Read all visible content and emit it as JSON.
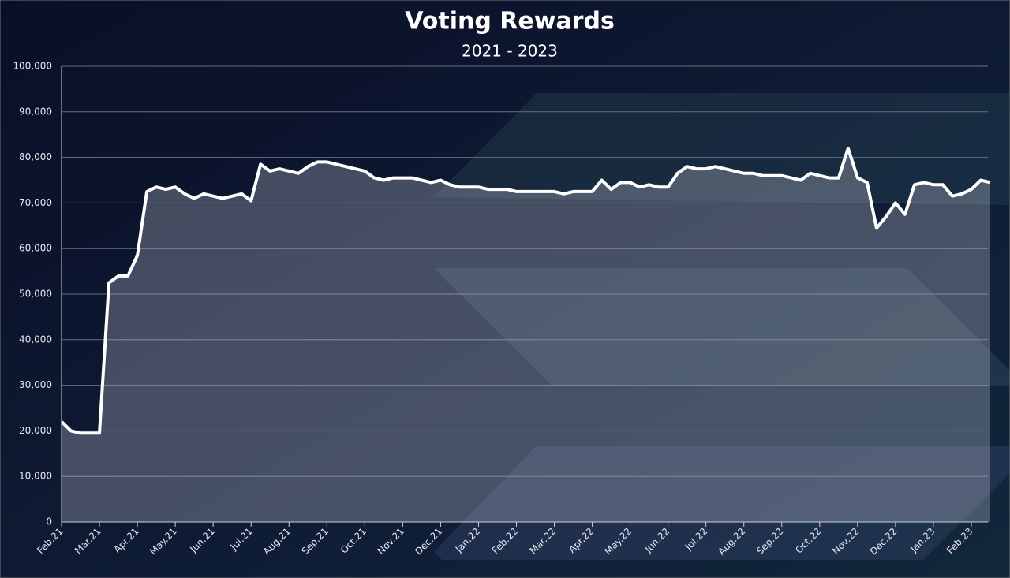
{
  "chart_data": {
    "type": "area",
    "title": "Voting Rewards",
    "subtitle": "2021 - 2023",
    "categories": [
      "Feb.21",
      null,
      null,
      null,
      "Mar.21",
      null,
      null,
      null,
      "Apr.21",
      null,
      null,
      null,
      "May.21",
      null,
      null,
      null,
      "Jun.21",
      null,
      null,
      null,
      "Jul.21",
      null,
      null,
      null,
      "Aug.21",
      null,
      null,
      null,
      "Sep.21",
      null,
      null,
      null,
      "Oct.21",
      null,
      null,
      null,
      "Nov.21",
      null,
      null,
      null,
      "Dec.21",
      null,
      null,
      null,
      "Jan.22",
      null,
      null,
      null,
      "Feb.22",
      null,
      null,
      null,
      "Mar.22",
      null,
      null,
      null,
      "Apr.22",
      null,
      null,
      null,
      "May.22",
      null,
      null,
      null,
      "Jun.22",
      null,
      null,
      null,
      "Jul.22",
      null,
      null,
      null,
      "Aug.22",
      null,
      null,
      null,
      "Sep.22",
      null,
      null,
      null,
      "Oct.22",
      null,
      null,
      null,
      "Nov.22",
      null,
      null,
      null,
      "Dec.22",
      null,
      null,
      null,
      "Jan.23",
      null,
      null,
      null,
      "Feb.23",
      null,
      null
    ],
    "values": [
      22000,
      20000,
      19500,
      19500,
      19500,
      52500,
      54000,
      54000,
      58500,
      72500,
      73500,
      73000,
      73500,
      72000,
      71000,
      72000,
      71500,
      71000,
      71500,
      72000,
      70500,
      78500,
      77000,
      77500,
      77000,
      76500,
      78000,
      79000,
      79000,
      78500,
      78000,
      77500,
      77000,
      75500,
      75000,
      75500,
      75500,
      75500,
      75000,
      74500,
      75000,
      74000,
      73500,
      73500,
      73500,
      73000,
      73000,
      73000,
      72500,
      72500,
      72500,
      72500,
      72500,
      72000,
      72500,
      72500,
      72500,
      75000,
      73000,
      74500,
      74500,
      73500,
      74000,
      73500,
      73500,
      76500,
      78000,
      77500,
      77500,
      78000,
      77500,
      77000,
      76500,
      76500,
      76000,
      76000,
      76000,
      75500,
      75000,
      76500,
      76000,
      75500,
      75500,
      82000,
      75500,
      74500,
      64500,
      67000,
      70000,
      67500,
      74000,
      74500,
      74000,
      74000,
      71500,
      72000,
      73000,
      75000,
      74500
    ],
    "color": "#ffffff",
    "ylim": [
      0,
      100000
    ],
    "yticks": [
      0,
      {
        "value": 10000,
        "label": "10,000"
      },
      {
        "value": 20000,
        "label": "20,000"
      },
      {
        "value": 30000,
        "label": "30,000"
      },
      {
        "value": 40000,
        "label": "40,000"
      },
      {
        "value": 50000,
        "label": "50,000"
      },
      {
        "value": 60000,
        "label": "60,000"
      },
      {
        "value": 70000,
        "label": "70,000"
      },
      {
        "value": 80000,
        "label": "80,000"
      },
      {
        "value": 90000,
        "label": "90,000"
      },
      {
        "value": 100000,
        "label": "100,000"
      }
    ],
    "grid": true
  }
}
